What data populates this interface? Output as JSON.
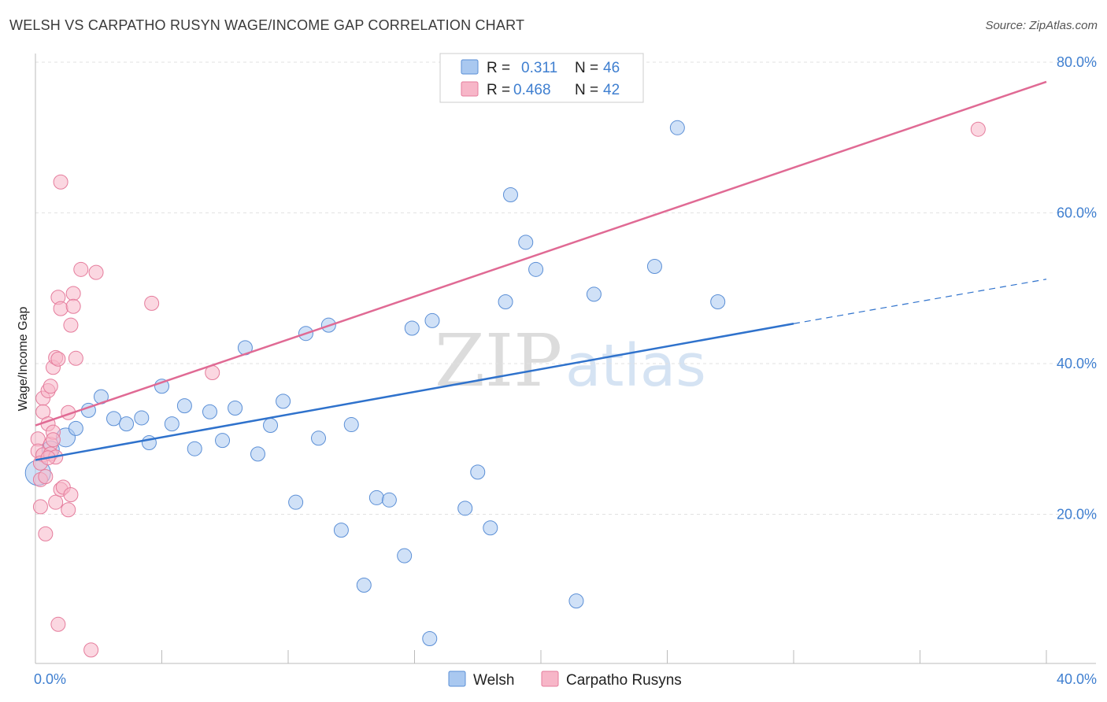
{
  "header": {
    "title": "WELSH VS CARPATHO RUSYN WAGE/INCOME GAP CORRELATION CHART",
    "source": "Source: ZipAtlas.com"
  },
  "watermark": {
    "zip": "ZIP",
    "atlas": "atlas"
  },
  "legend": {
    "rows": [
      {
        "r_label": "R =",
        "r_value": "0.311",
        "n_label": "N =",
        "n_value": "46"
      },
      {
        "r_label": "R =",
        "r_value": "0.468",
        "n_label": "N =",
        "n_value": "42"
      }
    ]
  },
  "bottom_legend": {
    "items": [
      {
        "label": "Welsh"
      },
      {
        "label": "Carpatho Rusyns"
      }
    ]
  },
  "colors": {
    "welsh_fill": "#a9c8f0",
    "welsh_stroke": "#5b8fd6",
    "welsh_line": "#2f72cc",
    "rusyn_fill": "#f7b6c8",
    "rusyn_stroke": "#e57c9c",
    "rusyn_line": "#e06a94",
    "grid": "#e2e2e2",
    "axis_label": "#3f7fd0"
  },
  "chart_data": {
    "type": "scatter",
    "title": "WELSH VS CARPATHO RUSYN WAGE/INCOME GAP CORRELATION CHART",
    "xlabel": "",
    "ylabel": "Wage/Income Gap",
    "xlim": [
      0,
      40
    ],
    "ylim": [
      0,
      80
    ],
    "x_tick_labels": [
      {
        "value": 0,
        "label": "0.0%"
      },
      {
        "value": 40,
        "label": "40.0%"
      }
    ],
    "y_tick_labels": [
      {
        "value": 20,
        "label": "20.0%"
      },
      {
        "value": 40,
        "label": "40.0%"
      },
      {
        "value": 60,
        "label": "60.0%"
      },
      {
        "value": 80,
        "label": "80.0%"
      }
    ],
    "series": [
      {
        "name": "Welsh",
        "R": 0.311,
        "N": 46,
        "trend": {
          "x0": 0,
          "y0": 27.2,
          "x1": 30,
          "y1": 45.3,
          "dash_to_x": 40,
          "dash_to_y": 51.2
        },
        "points": [
          [
            0.1,
            25.5,
            16
          ],
          [
            1.2,
            30.2,
            12
          ],
          [
            0.6,
            28.6,
            11
          ],
          [
            1.6,
            31.4,
            9
          ],
          [
            2.1,
            33.8,
            9
          ],
          [
            2.6,
            35.6,
            9
          ],
          [
            3.1,
            32.7,
            9
          ],
          [
            3.6,
            32.0,
            9
          ],
          [
            4.2,
            32.8,
            9
          ],
          [
            4.5,
            29.5,
            9
          ],
          [
            5.0,
            37.0,
            9
          ],
          [
            5.4,
            32.0,
            9
          ],
          [
            5.9,
            34.4,
            9
          ],
          [
            6.3,
            28.7,
            9
          ],
          [
            6.9,
            33.6,
            9
          ],
          [
            7.4,
            29.8,
            9
          ],
          [
            7.9,
            34.1,
            9
          ],
          [
            8.3,
            42.1,
            9
          ],
          [
            8.8,
            28.0,
            9
          ],
          [
            9.3,
            31.8,
            9
          ],
          [
            9.8,
            35.0,
            9
          ],
          [
            10.3,
            21.6,
            9
          ],
          [
            10.7,
            44.0,
            9
          ],
          [
            11.2,
            30.1,
            9
          ],
          [
            11.6,
            45.1,
            9
          ],
          [
            12.1,
            17.9,
            9
          ],
          [
            12.5,
            31.9,
            9
          ],
          [
            13.0,
            10.6,
            9
          ],
          [
            13.5,
            22.2,
            9
          ],
          [
            14.0,
            21.9,
            9
          ],
          [
            14.6,
            14.5,
            9
          ],
          [
            14.9,
            44.7,
            9
          ],
          [
            15.6,
            3.5,
            9
          ],
          [
            15.7,
            45.7,
            9
          ],
          [
            17.0,
            20.8,
            9
          ],
          [
            17.5,
            25.6,
            9
          ],
          [
            18.0,
            18.2,
            9
          ],
          [
            18.6,
            48.2,
            9
          ],
          [
            18.8,
            62.4,
            9
          ],
          [
            19.4,
            56.1,
            9
          ],
          [
            19.8,
            52.5,
            9
          ],
          [
            21.4,
            8.5,
            9
          ],
          [
            22.1,
            49.2,
            9
          ],
          [
            24.5,
            52.9,
            9
          ],
          [
            25.4,
            71.3,
            9
          ],
          [
            27.0,
            48.2,
            9
          ]
        ]
      },
      {
        "name": "Carpatho Rusyns",
        "R": 0.468,
        "N": 42,
        "trend": {
          "x0": 0,
          "y0": 31.8,
          "x1": 40,
          "y1": 77.4
        },
        "points": [
          [
            0.1,
            30.0,
            9
          ],
          [
            0.1,
            28.4,
            9
          ],
          [
            0.2,
            21.0,
            9
          ],
          [
            0.2,
            24.6,
            9
          ],
          [
            0.3,
            35.4,
            9
          ],
          [
            0.3,
            33.6,
            9
          ],
          [
            0.3,
            27.9,
            9
          ],
          [
            0.4,
            25.0,
            9
          ],
          [
            0.4,
            17.4,
            9
          ],
          [
            0.5,
            32.0,
            9
          ],
          [
            0.5,
            36.4,
            9
          ],
          [
            0.6,
            29.3,
            9
          ],
          [
            0.6,
            28.0,
            9
          ],
          [
            0.6,
            37.0,
            9
          ],
          [
            0.7,
            39.5,
            9
          ],
          [
            0.7,
            30.9,
            9
          ],
          [
            0.7,
            29.9,
            9
          ],
          [
            0.8,
            27.6,
            9
          ],
          [
            0.8,
            21.6,
            9
          ],
          [
            0.8,
            40.8,
            9
          ],
          [
            0.9,
            48.8,
            9
          ],
          [
            0.9,
            40.6,
            9
          ],
          [
            1.0,
            23.3,
            9
          ],
          [
            0.9,
            5.4,
            9
          ],
          [
            1.0,
            64.1,
            9
          ],
          [
            1.0,
            47.3,
            9
          ],
          [
            1.1,
            23.6,
            9
          ],
          [
            1.3,
            20.6,
            9
          ],
          [
            1.3,
            33.5,
            9
          ],
          [
            1.4,
            22.6,
            9
          ],
          [
            1.4,
            45.1,
            9
          ],
          [
            1.5,
            49.3,
            9
          ],
          [
            1.5,
            47.6,
            9
          ],
          [
            1.6,
            40.7,
            9
          ],
          [
            1.8,
            52.5,
            9
          ],
          [
            2.2,
            2.0,
            9
          ],
          [
            2.4,
            52.1,
            9
          ],
          [
            4.6,
            48.0,
            9
          ],
          [
            7.0,
            38.8,
            9
          ],
          [
            37.3,
            71.1,
            9
          ],
          [
            0.2,
            26.8,
            9
          ],
          [
            0.5,
            27.5,
            9
          ]
        ]
      }
    ]
  }
}
